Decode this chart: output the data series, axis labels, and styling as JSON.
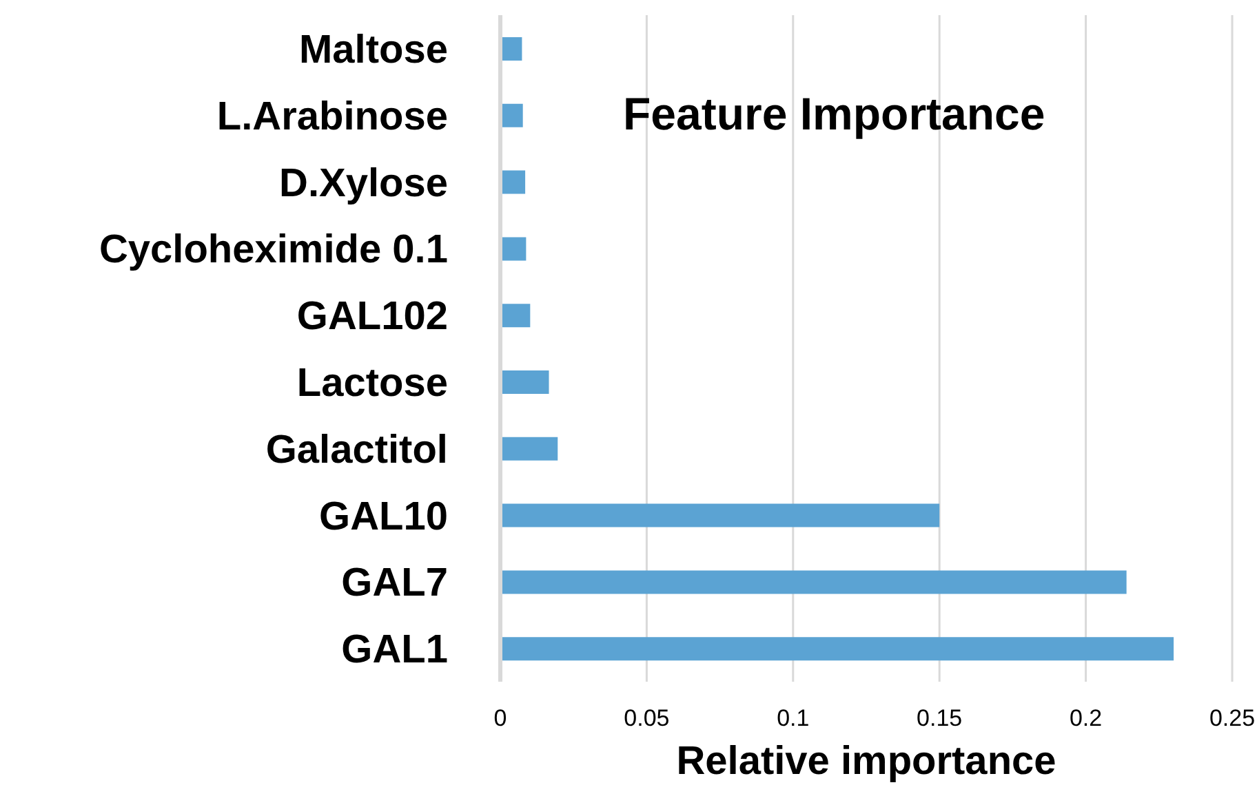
{
  "chart_data": {
    "type": "bar",
    "orientation": "horizontal",
    "title": "Feature Importance",
    "xlabel": "Relative importance",
    "categories": [
      "Maltose",
      "L.Arabinose",
      "D.Xylose",
      "Cycloheximide 0.1",
      "GAL102",
      "Lactose",
      "Galactitol",
      "GAL10",
      "GAL7",
      "GAL1"
    ],
    "values": [
      0.0074,
      0.0077,
      0.0085,
      0.0088,
      0.0102,
      0.0166,
      0.0196,
      0.15,
      0.2139,
      0.23
    ],
    "color": "#5ba3d3",
    "xlim": [
      0,
      0.25
    ],
    "xticks": [
      0,
      0.05,
      0.1,
      0.15,
      0.2,
      0.25
    ],
    "grid": "x",
    "legend": false
  }
}
